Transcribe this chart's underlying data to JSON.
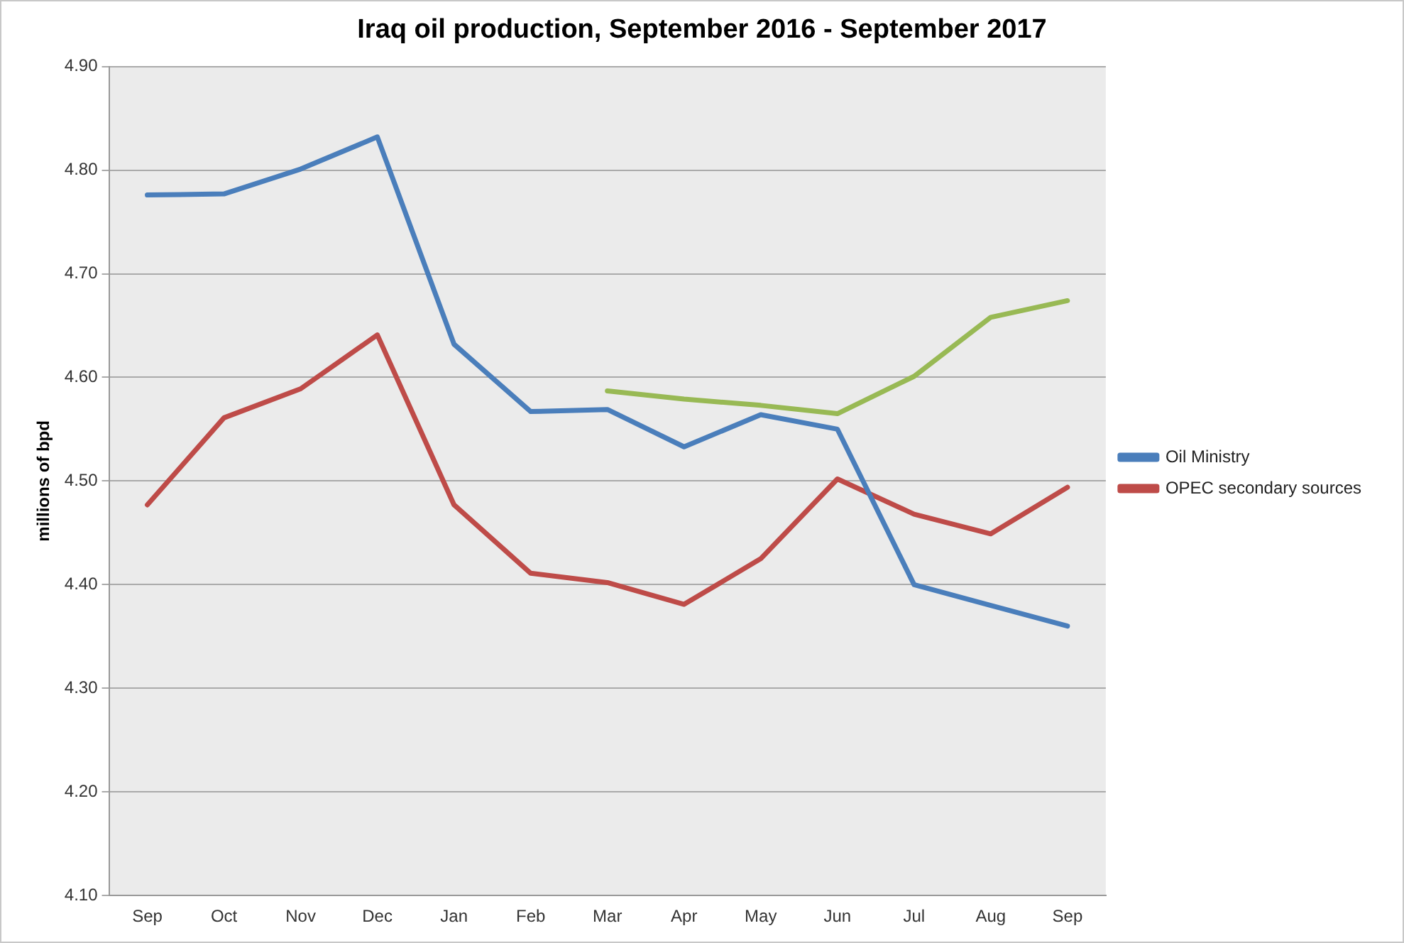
{
  "chart_data": {
    "type": "line",
    "title": "Iraq oil production, September 2016 - September 2017",
    "ylabel": "millions of bpd",
    "categories": [
      "Sep",
      "Oct",
      "Nov",
      "Dec",
      "Jan",
      "Feb",
      "Mar",
      "Apr",
      "May",
      "Jun",
      "Jul",
      "Aug",
      "Sep"
    ],
    "series": [
      {
        "name": "Oil Ministry",
        "color": "#4a7ebb",
        "values": [
          4.776,
          4.777,
          4.801,
          4.832,
          4.632,
          4.567,
          4.569,
          4.533,
          4.564,
          4.55,
          4.4,
          4.38,
          4.36
        ]
      },
      {
        "name": "OPEC secondary sources",
        "color": "#be4b48",
        "values": [
          4.477,
          4.561,
          4.589,
          4.641,
          4.477,
          4.411,
          4.402,
          4.381,
          4.425,
          4.502,
          4.468,
          4.449,
          4.494
        ]
      },
      {
        "color": "#98b954",
        "values": [
          null,
          null,
          null,
          null,
          null,
          null,
          4.587,
          4.579,
          4.573,
          4.565,
          4.601,
          4.658,
          4.674
        ]
      }
    ],
    "ylim": [
      4.1,
      4.9
    ],
    "yticks": [
      {
        "value": 4.1,
        "label": "4.10"
      },
      {
        "value": 4.2,
        "label": "4.20"
      },
      {
        "value": 4.3,
        "label": "4.30"
      },
      {
        "value": 4.4,
        "label": "4.40"
      },
      {
        "value": 4.5,
        "label": "4.50"
      },
      {
        "value": 4.6,
        "label": "4.60"
      },
      {
        "value": 4.7,
        "label": "4.70"
      },
      {
        "value": 4.8,
        "label": "4.80"
      },
      {
        "value": 4.9,
        "label": "4.90"
      }
    ],
    "grid": "y",
    "legend": "right",
    "marker": "none",
    "line_style": "solid"
  }
}
